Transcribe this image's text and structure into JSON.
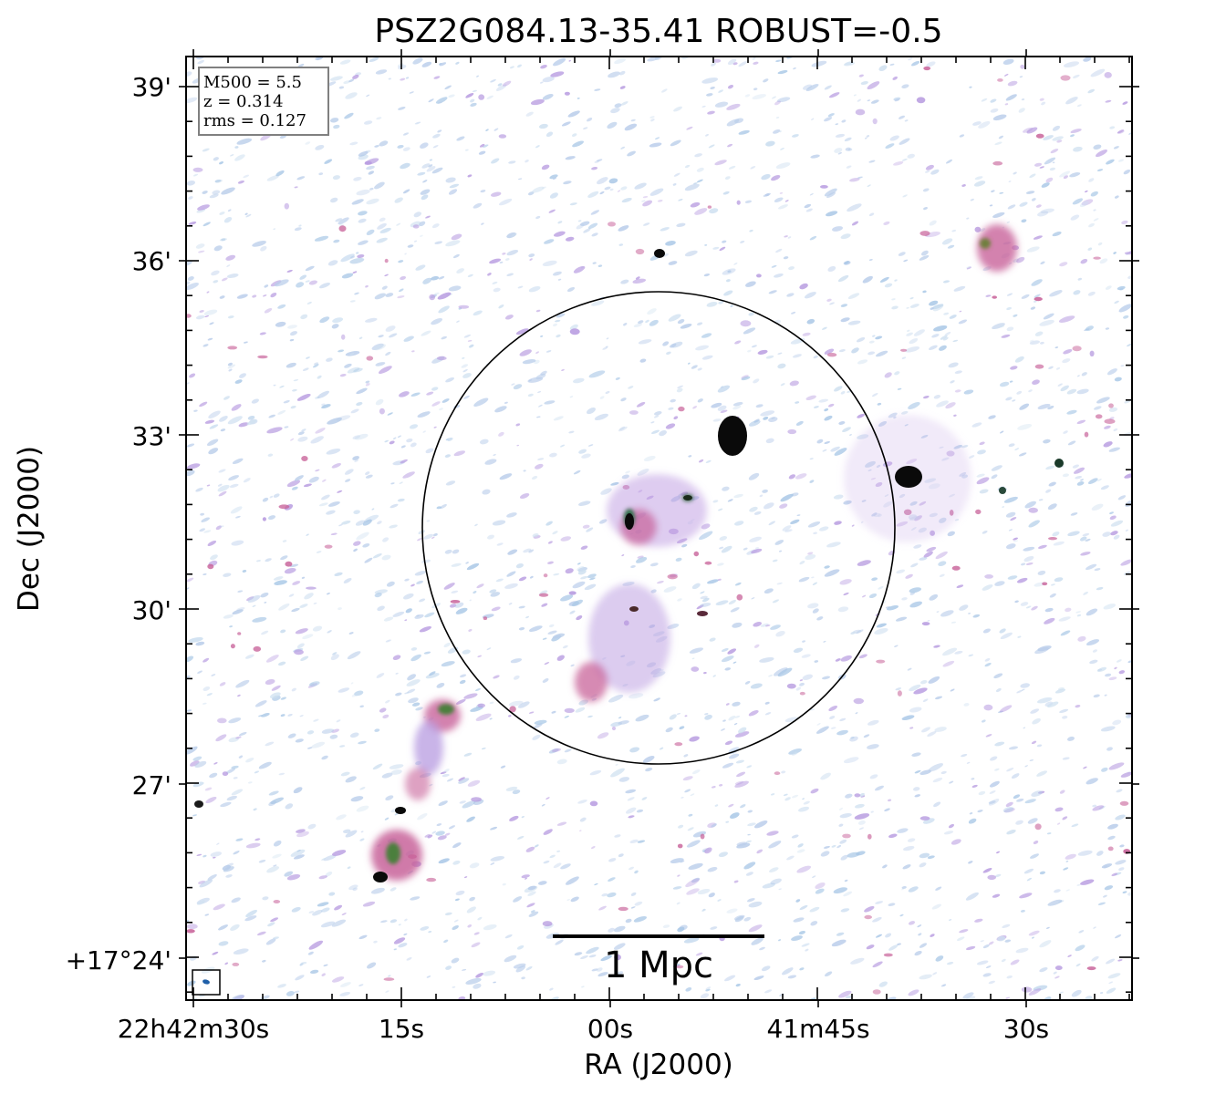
{
  "figure": {
    "title": "PSZ2G084.13-35.41 ROBUST=-0.5",
    "x_axis_label": "RA (J2000)",
    "y_axis_label": "Dec (J2000)",
    "x_tick_labels": [
      "22h42m30s",
      "15s",
      "00s",
      "41m45s",
      "30s"
    ],
    "y_tick_labels": [
      "39'",
      "36'",
      "33'",
      "30'",
      "27'",
      "+17°24'"
    ],
    "legend": {
      "m500": "M500 = 5.5",
      "redshift": "z = 0.314",
      "rms": "rms = 0.127"
    },
    "scale_bar_label": "1 Mpc",
    "colors": {
      "background": "#ffffff",
      "noise_light": "#b9cdea",
      "noise_purple": "#b79be0",
      "emission_magenta": "#c8639a",
      "emission_green": "#4c7f3c",
      "peak": "#0a0a0a",
      "circle": "#000000",
      "beam": "#1f5fa8"
    }
  }
}
